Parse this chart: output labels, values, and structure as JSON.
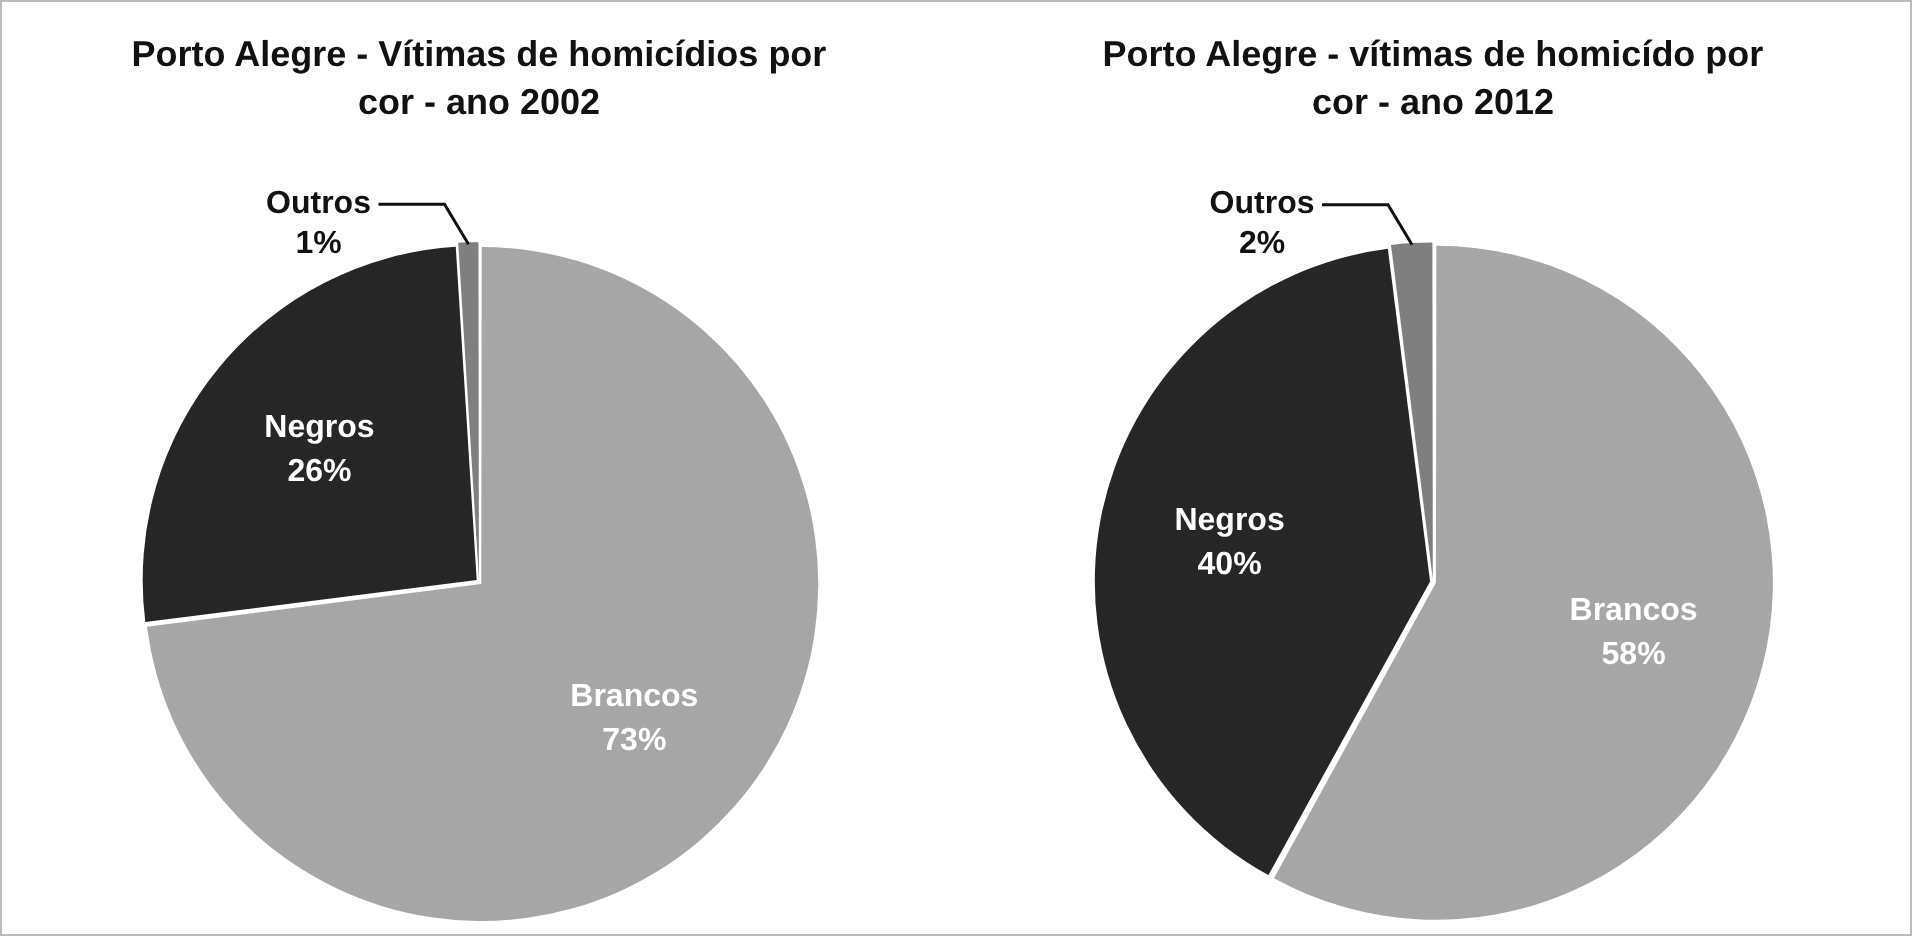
{
  "chart_data": [
    {
      "type": "pie",
      "title": "Porto Alegre - Vítimas de homicídios por cor -  ano 2002",
      "categories": [
        "Brancos",
        "Negros",
        "Outros"
      ],
      "values": [
        73,
        26,
        1
      ],
      "colors": [
        "#a6a6a6",
        "#262626",
        "#7f7f7f"
      ],
      "value_labels": [
        "73%",
        "26%",
        "1%"
      ],
      "legend": false
    },
    {
      "type": "pie",
      "title": "Porto Alegre - vítimas de homicído por cor - ano 2012",
      "categories": [
        "Brancos",
        "Negros",
        "Outros"
      ],
      "values": [
        58,
        40,
        2
      ],
      "colors": [
        "#a6a6a6",
        "#262626",
        "#7f7f7f"
      ],
      "value_labels": [
        "58%",
        "40%",
        "2%"
      ],
      "legend": false
    }
  ]
}
